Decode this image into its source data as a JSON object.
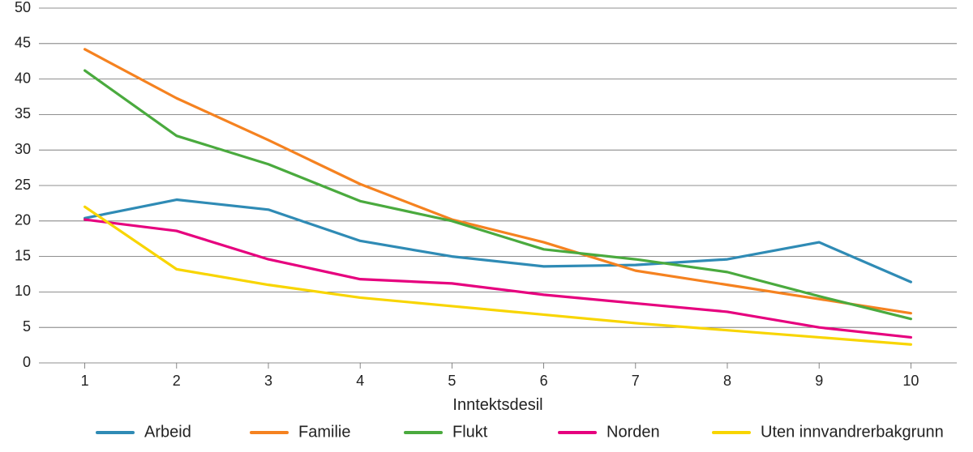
{
  "chart": {
    "type": "line",
    "background_color": "#ffffff",
    "grid_color": "#6a6a6a",
    "grid_stroke_width": 0.8,
    "tick_font_size": 18,
    "axis_label_font_size": 20,
    "x_axis_label": "Inntektsdesil",
    "x_categories": [
      "1",
      "2",
      "3",
      "4",
      "5",
      "6",
      "7",
      "8",
      "9",
      "10"
    ],
    "ylim": [
      0,
      50
    ],
    "ytick_step": 5,
    "line_stroke_width": 3.2,
    "legend_font_size": 20,
    "legend_swatch_length": 44,
    "legend_swatch_stroke": 4,
    "series": [
      {
        "name": "Arbeid",
        "color": "#2f8bb5",
        "values": [
          20.4,
          23.0,
          21.6,
          17.2,
          15.0,
          13.6,
          13.8,
          14.6,
          17.0,
          11.4
        ]
      },
      {
        "name": "Familie",
        "color": "#f58220",
        "values": [
          44.2,
          37.3,
          31.4,
          25.2,
          20.2,
          17.0,
          13.0,
          11.0,
          9.0,
          7.0
        ]
      },
      {
        "name": "Flukt",
        "color": "#4aaa3e",
        "values": [
          41.2,
          32.0,
          28.0,
          22.8,
          20.0,
          16.0,
          14.6,
          12.8,
          9.4,
          6.2
        ]
      },
      {
        "name": "Norden",
        "color": "#e6007e",
        "values": [
          20.2,
          18.6,
          14.6,
          11.8,
          11.2,
          9.6,
          8.4,
          7.2,
          5.0,
          3.6
        ]
      },
      {
        "name": "Uten innvandrerbakgrunn",
        "color": "#f8d500",
        "values": [
          22.0,
          13.2,
          11.0,
          9.2,
          8.0,
          6.8,
          5.6,
          4.6,
          3.6,
          2.6
        ]
      }
    ]
  }
}
